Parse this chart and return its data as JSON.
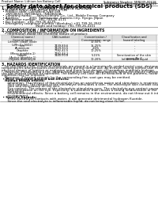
{
  "title": "Safety data sheet for chemical products (SDS)",
  "header_left": "Product Name: Lithium Ion Battery Cell",
  "header_right_line1": "Substance Number: SBR049-00618",
  "header_right_line2": "Established / Revision: Dec.1.2019",
  "section1_title": "1. PRODUCT AND COMPANY IDENTIFICATION",
  "section1_lines": [
    " • Product name: Lithium Ion Battery Cell",
    " • Product code: Cylindrical-type cell",
    "     INR18650J, INR18650L, INR18650A",
    " • Company name:     Sanyo Electric Co., Ltd., Mobile Energy Company",
    " • Address:          2001  Kamikosaka, Sumoto-City, Hyogo, Japan",
    " • Telephone number:  +81-799-26-4111",
    " • Fax number:  +81-799-26-4129",
    " • Emergency telephone number (Weekday) +81-799-26-3942",
    "                                  (Night and holiday) +81-799-26-4101"
  ],
  "section2_title": "2. COMPOSITION / INFORMATION ON INGREDIENTS",
  "section2_intro": " • Substance or preparation: Preparation",
  "section2_sub": "   • Information about the chemical nature of product:",
  "table_header": [
    "Chemical name /\nGeneral name",
    "CAS number",
    "Concentration /\nConcentration range",
    "Classification and\nhazard labeling"
  ],
  "table_rows": [
    [
      "Lithium cobalt oxide\n(LiMn-Co-NiO2)",
      "-",
      "30-50%",
      "-"
    ],
    [
      "Iron",
      "7439-89-6",
      "15-25%",
      "-"
    ],
    [
      "Aluminium",
      "7429-90-5",
      "2-6%",
      "-"
    ],
    [
      "Graphite\n(Meso graphite-1)\n(Active graphite-1)",
      "7782-42-5\n7782-44-2",
      "10-25%",
      "-"
    ],
    [
      "Copper",
      "7440-50-8",
      "5-15%",
      "Sensitization of the skin\ngroup No.2"
    ],
    [
      "Organic electrolyte",
      "-",
      "10-20%",
      "Inflammable liquid"
    ]
  ],
  "section3_title": "3. HAZARDS IDENTIFICATION",
  "section3_lines": [
    "   For the battery cell, chemical materials are stored in a hermetically sealed metal case, designed to withstand",
    "temperatures and pressures-concentrations during normal use. As a result, during normal use, there is no",
    "physical danger of ignition or explosion and there is no danger of hazardous materials leakage.",
    "   However, if exposed to a fire, added mechanical shocks, decomposed, when electrolyte containing materials use,",
    "the gas release cannot be operated. The battery cell case will be breached of fire-patterns, hazardous",
    "materials may be released.",
    "   Moreover, if heated strongly by the surrounding fire, soot gas may be emitted.",
    " • Most important hazard and effects:",
    "   Human health effects:",
    "      Inhalation: The release of the electrolyte has an anesthesia action and stimulates is respiratory tract.",
    "      Skin contact: The release of the electrolyte stimulates a skin. The electrolyte skin contact causes a",
    "      sore and stimulation on the skin.",
    "      Eye contact: The release of the electrolyte stimulates eyes. The electrolyte eye contact causes a sore",
    "      and stimulation on the eye. Especially, a substance that causes a strong inflammation of the eye is",
    "      contained.",
    "      Environmental effects: Since a battery cell remains in the environment, do not throw out it into the",
    "      environment.",
    " • Specific hazards:",
    "      If the electrolyte contacts with water, it will generate detrimental hydrogen fluoride.",
    "      Since the seal electrolyte is inflammable liquid, do not bring close to fire."
  ],
  "bg_color": "#ffffff",
  "line_color": "#666666",
  "table_line_color": "#aaaaaa",
  "title_fontsize": 5.0,
  "body_fontsize": 2.9,
  "header_fontsize": 2.7,
  "section_fontsize": 3.3,
  "table_header_fontsize": 2.5,
  "table_body_fontsize": 2.5
}
